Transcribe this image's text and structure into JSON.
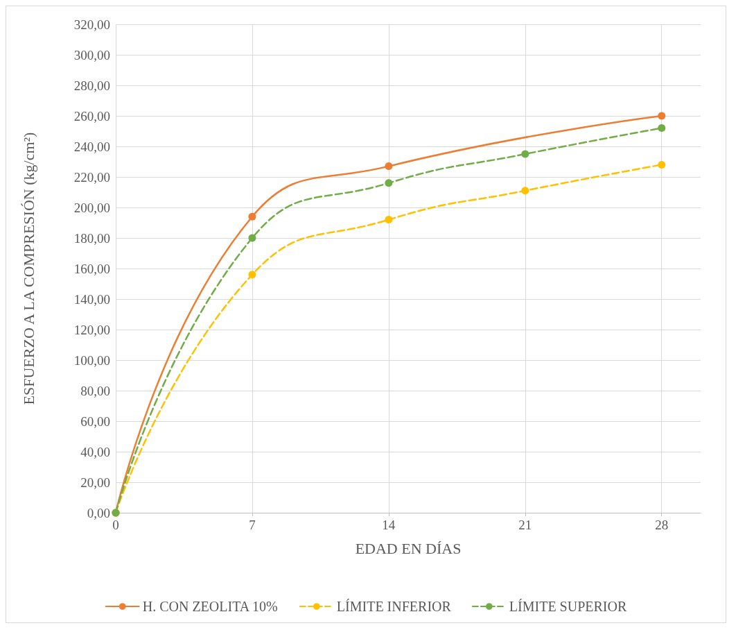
{
  "chart_data": {
    "type": "line",
    "xlabel": "EDAD EN DÍAS",
    "ylabel": "ESFUERZO A LA COMPRESIÓN (kg/cm²)",
    "xlim": [
      0,
      30
    ],
    "xticks": [
      0,
      7,
      14,
      21,
      28
    ],
    "ylim": [
      0,
      320
    ],
    "yticks": [
      {
        "value": 0,
        "label": "0,00"
      },
      {
        "value": 20,
        "label": "20,00"
      },
      {
        "value": 40,
        "label": "40,00"
      },
      {
        "value": 60,
        "label": "60,00"
      },
      {
        "value": 80,
        "label": "80,00"
      },
      {
        "value": 100,
        "label": "100,00"
      },
      {
        "value": 120,
        "label": "120,00"
      },
      {
        "value": 140,
        "label": "140,00"
      },
      {
        "value": 160,
        "label": "160,00"
      },
      {
        "value": 180,
        "label": "180,00"
      },
      {
        "value": 200,
        "label": "200,00"
      },
      {
        "value": 220,
        "label": "220,00"
      },
      {
        "value": 240,
        "label": "240,00"
      },
      {
        "value": 260,
        "label": "260,00"
      },
      {
        "value": 280,
        "label": "280,00"
      },
      {
        "value": 300,
        "label": "300,00"
      },
      {
        "value": 320,
        "label": "320,00"
      }
    ],
    "grid": true,
    "legend": "bottom",
    "marker": "circle",
    "series": [
      {
        "name": "H. CON ZEOLITA 10%",
        "color": "#ed7d31",
        "line_style": "solid",
        "x": [
          0,
          7,
          14,
          28
        ],
        "values": [
          0,
          194,
          227,
          260
        ]
      },
      {
        "name": "LÍMITE INFERIOR",
        "color": "#ffc000",
        "line_style": "dashed",
        "x": [
          0,
          7,
          14,
          21,
          28
        ],
        "values": [
          0,
          156,
          192,
          211,
          228
        ]
      },
      {
        "name": "LÍMITE SUPERIOR",
        "color": "#70ad47",
        "line_style": "dashed",
        "x": [
          0,
          7,
          14,
          21,
          28
        ],
        "values": [
          0,
          180,
          216,
          235,
          252
        ]
      }
    ]
  }
}
